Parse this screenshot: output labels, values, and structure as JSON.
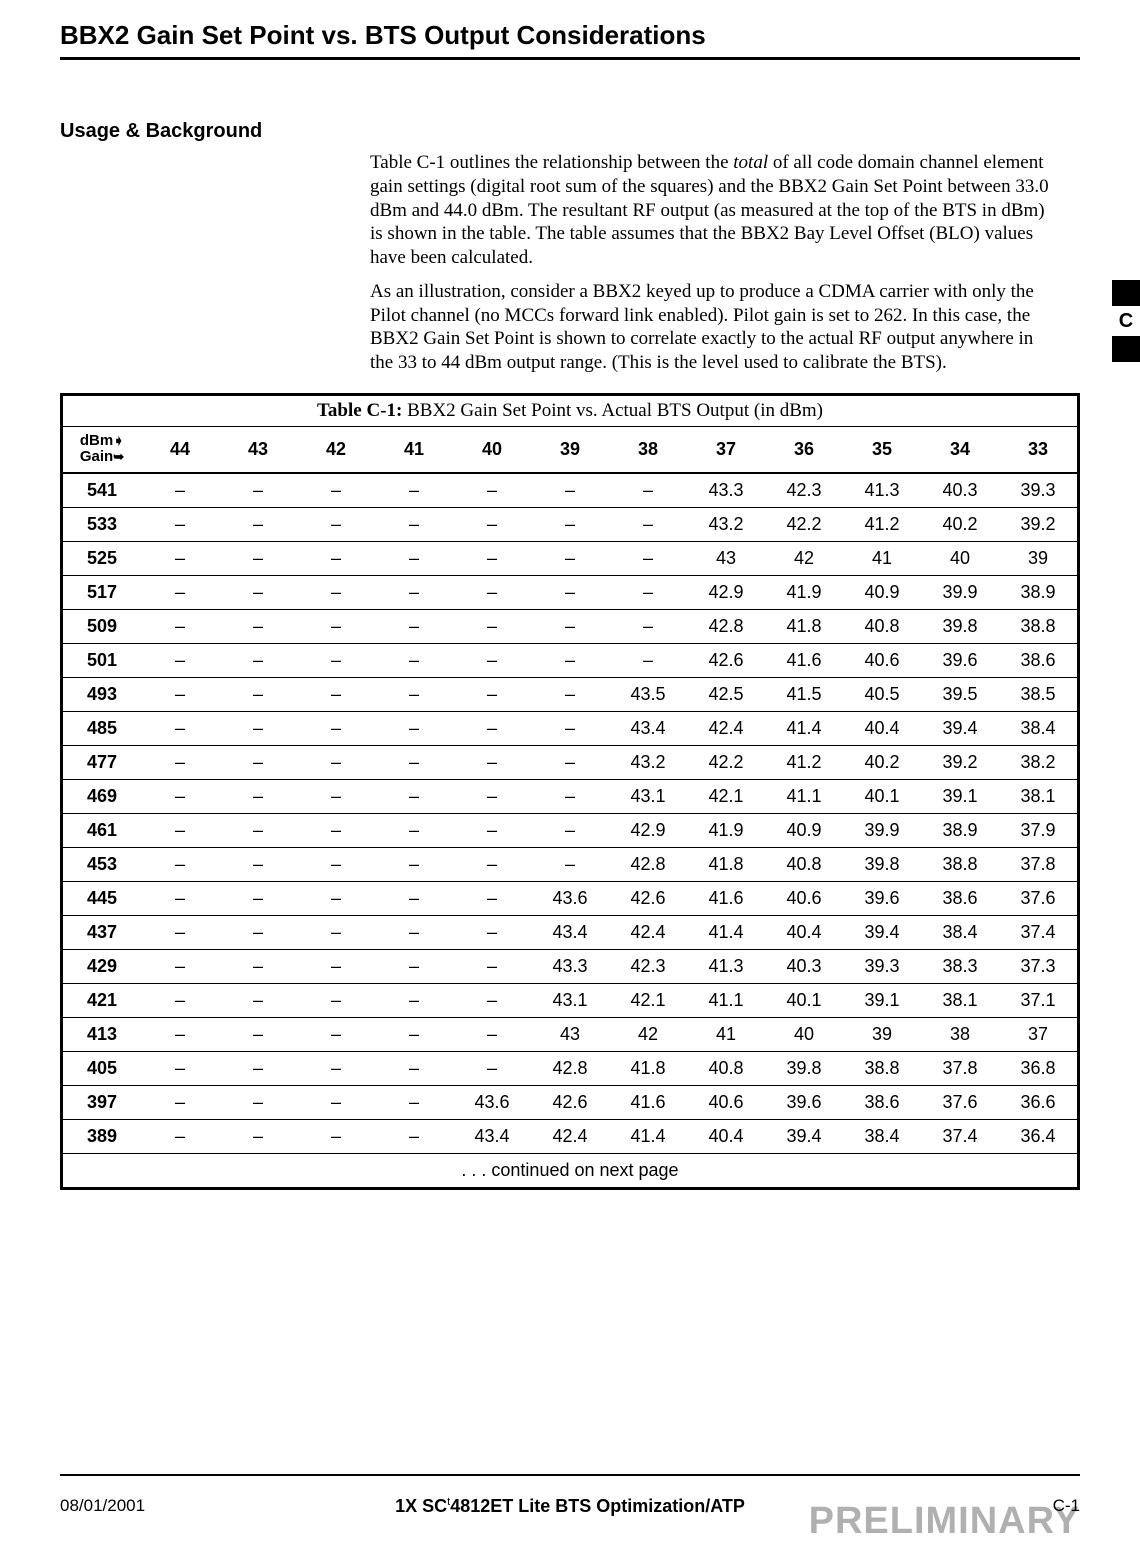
{
  "page_title": "BBX2 Gain Set Point vs. BTS Output Considerations",
  "side_tab_letter": "C",
  "section_heading": "Usage & Background",
  "para1_pre": "Table C-1 outlines the relationship between the ",
  "para1_ital": "total",
  "para1_post": " of all code domain channel element gain settings (digital root sum of the squares) and the BBX2 Gain Set Point  between 33.0 dBm and 44.0 dBm. The resultant RF output (as measured at the top of the BTS in dBm) is shown in the table.  The table assumes that the BBX2 Bay Level Offset (BLO) values have been calculated.",
  "para2": "As an illustration, consider a  BBX2 keyed up to produce a CDMA carrier with only the Pilot channel (no MCCs forward link enabled). Pilot gain is set to 262. In this case, the BBX2 Gain Set Point is shown to correlate exactly to the actual RF output anywhere in the 33 to 44 dBm output range.  (This is the level used to calibrate the BTS).",
  "table_caption_bold": "Table C-1:",
  "table_caption_rest": " BBX2 Gain Set Point vs. Actual BTS Output (in dBm)",
  "corner_top": "dBm",
  "corner_bottom": "Gain",
  "columns": [
    "44",
    "43",
    "42",
    "41",
    "40",
    "39",
    "38",
    "37",
    "36",
    "35",
    "34",
    "33"
  ],
  "rows": [
    {
      "g": "541",
      "v": [
        "–",
        "–",
        "–",
        "–",
        "–",
        "–",
        "–",
        "43.3",
        "42.3",
        "41.3",
        "40.3",
        "39.3"
      ]
    },
    {
      "g": "533",
      "v": [
        "–",
        "–",
        "–",
        "–",
        "–",
        "–",
        "–",
        "43.2",
        "42.2",
        "41.2",
        "40.2",
        "39.2"
      ]
    },
    {
      "g": "525",
      "v": [
        "–",
        "–",
        "–",
        "–",
        "–",
        "–",
        "–",
        "43",
        "42",
        "41",
        "40",
        "39"
      ]
    },
    {
      "g": "517",
      "v": [
        "–",
        "–",
        "–",
        "–",
        "–",
        "–",
        "–",
        "42.9",
        "41.9",
        "40.9",
        "39.9",
        "38.9"
      ]
    },
    {
      "g": "509",
      "v": [
        "–",
        "–",
        "–",
        "–",
        "–",
        "–",
        "–",
        "42.8",
        "41.8",
        "40.8",
        "39.8",
        "38.8"
      ]
    },
    {
      "g": "501",
      "v": [
        "–",
        "–",
        "–",
        "–",
        "–",
        "–",
        "–",
        "42.6",
        "41.6",
        "40.6",
        "39.6",
        "38.6"
      ]
    },
    {
      "g": "493",
      "v": [
        "–",
        "–",
        "–",
        "–",
        "–",
        "–",
        "43.5",
        "42.5",
        "41.5",
        "40.5",
        "39.5",
        "38.5"
      ]
    },
    {
      "g": "485",
      "v": [
        "–",
        "–",
        "–",
        "–",
        "–",
        "–",
        "43.4",
        "42.4",
        "41.4",
        "40.4",
        "39.4",
        "38.4"
      ]
    },
    {
      "g": "477",
      "v": [
        "–",
        "–",
        "–",
        "–",
        "–",
        "–",
        "43.2",
        "42.2",
        "41.2",
        "40.2",
        "39.2",
        "38.2"
      ]
    },
    {
      "g": "469",
      "v": [
        "–",
        "–",
        "–",
        "–",
        "–",
        "–",
        "43.1",
        "42.1",
        "41.1",
        "40.1",
        "39.1",
        "38.1"
      ]
    },
    {
      "g": "461",
      "v": [
        "–",
        "–",
        "–",
        "–",
        "–",
        "–",
        "42.9",
        "41.9",
        "40.9",
        "39.9",
        "38.9",
        "37.9"
      ]
    },
    {
      "g": "453",
      "v": [
        "–",
        "–",
        "–",
        "–",
        "–",
        "–",
        "42.8",
        "41.8",
        "40.8",
        "39.8",
        "38.8",
        "37.8"
      ]
    },
    {
      "g": "445",
      "v": [
        "–",
        "–",
        "–",
        "–",
        "–",
        "43.6",
        "42.6",
        "41.6",
        "40.6",
        "39.6",
        "38.6",
        "37.6"
      ]
    },
    {
      "g": "437",
      "v": [
        "–",
        "–",
        "–",
        "–",
        "–",
        "43.4",
        "42.4",
        "41.4",
        "40.4",
        "39.4",
        "38.4",
        "37.4"
      ]
    },
    {
      "g": "429",
      "v": [
        "–",
        "–",
        "–",
        "–",
        "–",
        "43.3",
        "42.3",
        "41.3",
        "40.3",
        "39.3",
        "38.3",
        "37.3"
      ]
    },
    {
      "g": "421",
      "v": [
        "–",
        "–",
        "–",
        "–",
        "–",
        "43.1",
        "42.1",
        "41.1",
        "40.1",
        "39.1",
        "38.1",
        "37.1"
      ]
    },
    {
      "g": "413",
      "v": [
        "–",
        "–",
        "–",
        "–",
        "–",
        "43",
        "42",
        "41",
        "40",
        "39",
        "38",
        "37"
      ]
    },
    {
      "g": "405",
      "v": [
        "–",
        "–",
        "–",
        "–",
        "–",
        "42.8",
        "41.8",
        "40.8",
        "39.8",
        "38.8",
        "37.8",
        "36.8"
      ]
    },
    {
      "g": "397",
      "v": [
        "–",
        "–",
        "–",
        "–",
        "43.6",
        "42.6",
        "41.6",
        "40.6",
        "39.6",
        "38.6",
        "37.6",
        "36.6"
      ]
    },
    {
      "g": "389",
      "v": [
        "–",
        "–",
        "–",
        "–",
        "43.4",
        "42.4",
        "41.4",
        "40.4",
        "39.4",
        "38.4",
        "37.4",
        "36.4"
      ]
    }
  ],
  "continued_text": ". . . continued on next page",
  "footer_date": "08/01/2001",
  "footer_center_pre": "1X SC",
  "footer_center_tm": "t",
  "footer_center_post": "4812ET Lite BTS Optimization/ATP",
  "footer_pageno": "C-1",
  "footer_watermark": "PRELIMINARY"
}
